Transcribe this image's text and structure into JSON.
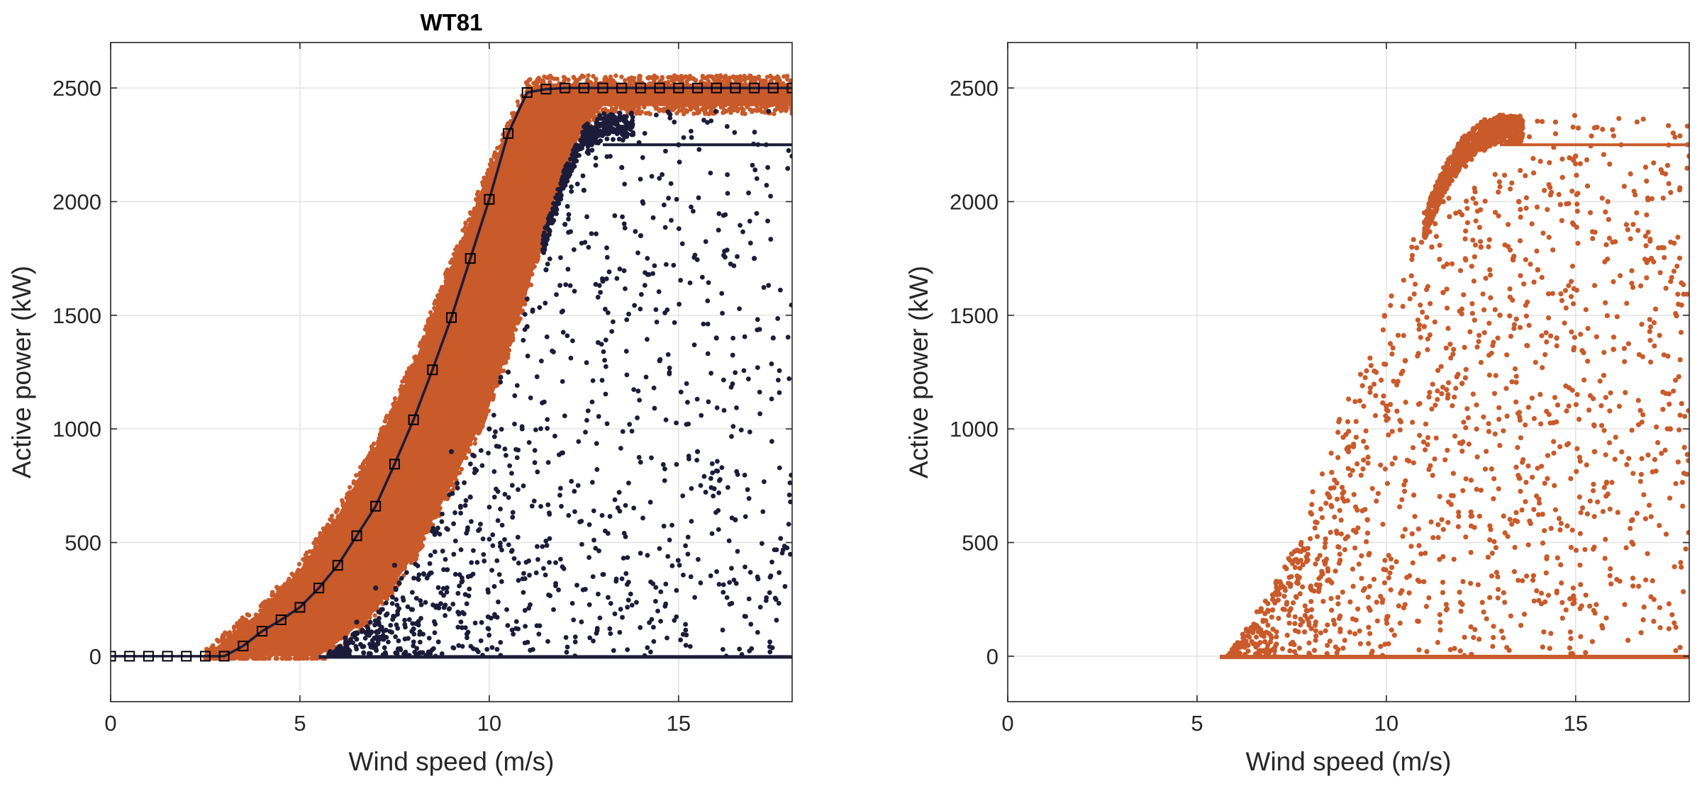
{
  "chart_data": [
    {
      "type": "scatter",
      "title": "WT81",
      "xlabel": "Wind speed (m/s)",
      "ylabel": "Active power (kW)",
      "xlim": [
        0,
        18
      ],
      "ylim": [
        -200,
        2700
      ],
      "xticks": [
        0,
        5,
        10,
        15
      ],
      "yticks": [
        0,
        500,
        1000,
        1500,
        2000,
        2500
      ],
      "grid": true,
      "colors": {
        "normal": "#c95a2a",
        "anomaly": "#1c1c3a",
        "curve": "#1c1c3a"
      },
      "series": [
        {
          "role": "reference-power-curve",
          "marker": "square",
          "x": [
            0,
            0.5,
            1,
            1.5,
            2,
            2.5,
            3,
            3.5,
            4,
            4.5,
            5,
            5.5,
            6,
            6.5,
            7,
            7.5,
            8,
            8.5,
            9,
            9.5,
            10,
            10.5,
            11,
            11.5,
            12,
            12.5,
            13,
            13.5,
            14,
            14.5,
            15,
            15.5,
            16,
            16.5,
            17,
            17.5,
            18
          ],
          "y": [
            0,
            0,
            0,
            0,
            0,
            0,
            0,
            45,
            110,
            160,
            215,
            300,
            400,
            530,
            660,
            845,
            1040,
            1260,
            1490,
            1750,
            2010,
            2300,
            2480,
            2495,
            2500,
            2500,
            2500,
            2500,
            2500,
            2500,
            2500,
            2500,
            2500,
            2500,
            2500,
            2500,
            2500
          ]
        },
        {
          "role": "normal-band",
          "lower_edge": [
            [
              3,
              0
            ],
            [
              5.5,
              0
            ],
            [
              6,
              60
            ],
            [
              7,
              200
            ],
            [
              8,
              440
            ],
            [
              9,
              750
            ],
            [
              10,
              1100
            ],
            [
              11,
              1600
            ],
            [
              11.5,
              1900
            ],
            [
              12,
              2150
            ],
            [
              12.5,
              2330
            ],
            [
              13,
              2420
            ],
            [
              18,
              2420
            ]
          ],
          "upper_edge": [
            [
              2.5,
              0
            ],
            [
              3.5,
              140
            ],
            [
              4,
              200
            ],
            [
              5,
              380
            ],
            [
              6,
              620
            ],
            [
              7,
              920
            ],
            [
              8,
              1280
            ],
            [
              9,
              1720
            ],
            [
              10,
              2130
            ],
            [
              11,
              2500
            ],
            [
              11.5,
              2520
            ],
            [
              18,
              2520
            ]
          ]
        },
        {
          "role": "curtailed-curve",
          "x": [
            13,
            14,
            15,
            16,
            17,
            18
          ],
          "y": [
            2250,
            2250,
            2250,
            2250,
            2250,
            2250
          ]
        },
        {
          "role": "zero-power-line",
          "x": [
            5.5,
            18
          ],
          "y": [
            -3,
            -3
          ]
        },
        {
          "role": "anomalous-points",
          "sample_points": [
            [
              5.8,
              20
            ],
            [
              6.2,
              80
            ],
            [
              6.5,
              150
            ],
            [
              7,
              300
            ],
            [
              7.5,
              400
            ],
            [
              8,
              120
            ],
            [
              8.5,
              550
            ],
            [
              9,
              900
            ],
            [
              9.5,
              700
            ],
            [
              10,
              1000
            ],
            [
              10.5,
              1250
            ],
            [
              11,
              1450
            ],
            [
              11.5,
              1700
            ],
            [
              12,
              1900
            ],
            [
              12.5,
              2050
            ],
            [
              13,
              1650
            ],
            [
              13.5,
              2150
            ],
            [
              14,
              1850
            ],
            [
              14.5,
              1300
            ],
            [
              15,
              2250
            ],
            [
              15.5,
              900
            ],
            [
              16,
              1400
            ],
            [
              16.5,
              600
            ],
            [
              17,
              1750
            ],
            [
              17.5,
              1400
            ],
            [
              18,
              2200
            ]
          ]
        }
      ]
    },
    {
      "type": "scatter",
      "title": "",
      "xlabel": "Wind speed (m/s)",
      "ylabel": "Active power (kW)",
      "xlim": [
        0,
        18
      ],
      "ylim": [
        -200,
        2700
      ],
      "xticks": [
        0,
        5,
        10,
        15
      ],
      "yticks": [
        0,
        500,
        1000,
        1500,
        2000,
        2500
      ],
      "grid": true,
      "colors": {
        "points": "#c95a2a"
      },
      "series": [
        {
          "role": "rated-cluster",
          "sample_points": [
            [
              11.2,
              1800
            ],
            [
              11.5,
              2000
            ],
            [
              11.8,
              2150
            ],
            [
              12,
              2250
            ],
            [
              12.3,
              2320
            ],
            [
              12.6,
              2360
            ],
            [
              13,
              2380
            ],
            [
              13.3,
              2370
            ]
          ]
        },
        {
          "role": "curtailed-curve",
          "x": [
            13,
            14,
            15,
            16,
            17,
            18
          ],
          "y": [
            2250,
            2250,
            2250,
            2250,
            2250,
            2250
          ]
        },
        {
          "role": "zero-power-line",
          "x": [
            5.6,
            18
          ],
          "y": [
            -3,
            -3
          ]
        },
        {
          "role": "scattered-points",
          "sample_points": [
            [
              6,
              40
            ],
            [
              6.5,
              120
            ],
            [
              7,
              250
            ],
            [
              7.5,
              450
            ],
            [
              8,
              300
            ],
            [
              8.5,
              700
            ],
            [
              9,
              900
            ],
            [
              9.5,
              600
            ],
            [
              10,
              1100
            ],
            [
              10.5,
              1300
            ],
            [
              11,
              1450
            ],
            [
              11.5,
              1600
            ],
            [
              12,
              1200
            ],
            [
              12.5,
              1800
            ],
            [
              13,
              1500
            ],
            [
              13.5,
              2000
            ],
            [
              14,
              1700
            ],
            [
              14.5,
              1400
            ],
            [
              15,
              2200
            ],
            [
              15.5,
              900
            ],
            [
              16,
              1350
            ],
            [
              16.5,
              600
            ],
            [
              17,
              1750
            ],
            [
              17.5,
              1000
            ],
            [
              18,
              2200
            ]
          ]
        }
      ]
    }
  ]
}
